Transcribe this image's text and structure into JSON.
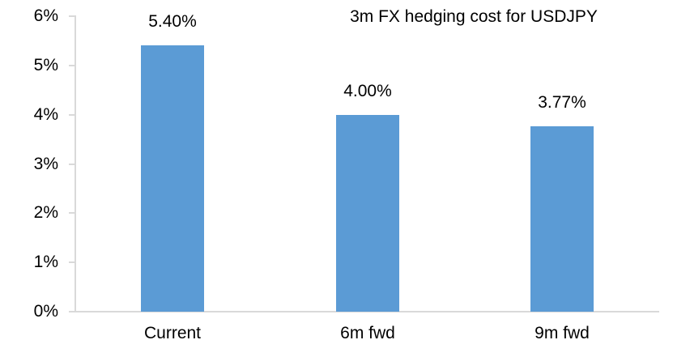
{
  "chart_data": {
    "type": "bar",
    "title": "3m FX hedging cost for USDJPY",
    "categories": [
      "Current",
      "6m fwd",
      "9m fwd"
    ],
    "values": [
      5.4,
      4.0,
      3.77
    ],
    "value_labels": [
      "5.40%",
      "4.00%",
      "3.77%"
    ],
    "xlabel": "",
    "ylabel": "",
    "ylim": [
      0,
      6
    ],
    "ytick_step": 1,
    "ytick_labels": [
      "0%",
      "1%",
      "2%",
      "3%",
      "4%",
      "5%",
      "6%"
    ],
    "grid": "off",
    "legend": "none",
    "colors": {
      "bar": "#5b9bd5",
      "axis": "#d9d9d9",
      "text": "#000000",
      "background": "#ffffff"
    }
  }
}
